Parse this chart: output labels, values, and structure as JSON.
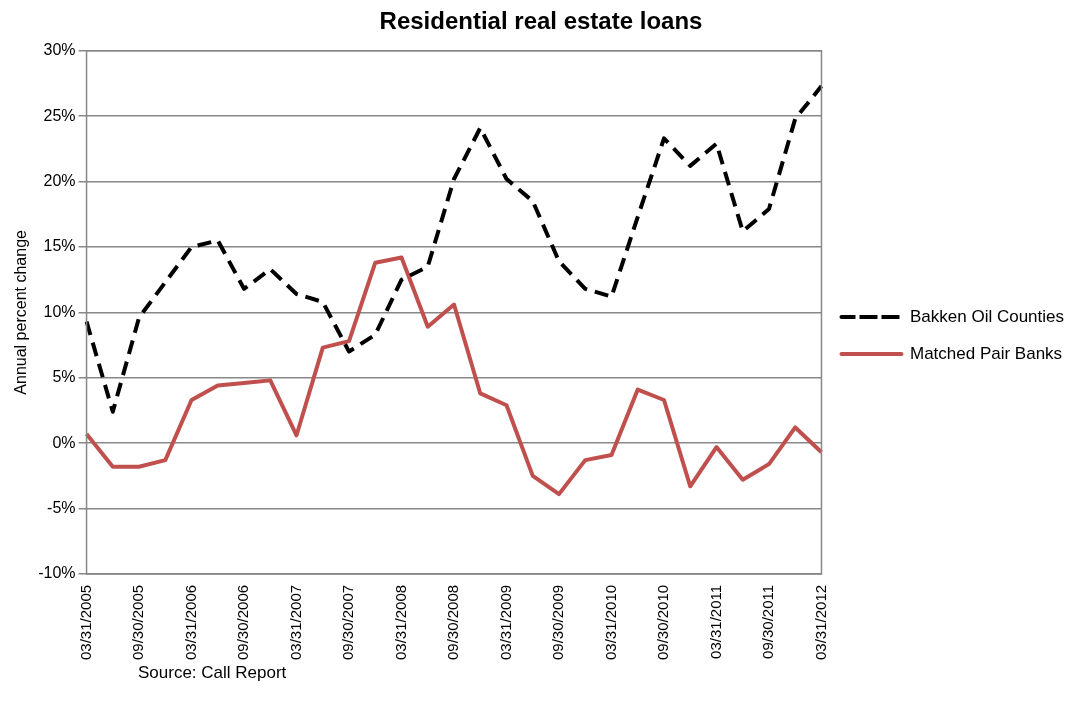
{
  "chart_data": {
    "type": "line",
    "title": "Residential real estate loans",
    "ylabel": "Annual percent change",
    "categories": [
      "03/31/2005",
      null,
      "09/30/2005",
      null,
      "03/31/2006",
      null,
      "09/30/2006",
      null,
      "03/31/2007",
      null,
      "09/30/2007",
      null,
      "03/31/2008",
      null,
      "09/30/2008",
      null,
      "03/31/2009",
      null,
      "09/30/2009",
      null,
      "03/31/2010",
      null,
      "09/30/2010",
      null,
      "03/31/2011",
      null,
      "09/30/2011",
      null,
      "03/31/2012"
    ],
    "series": [
      {
        "name": "Bakken Oil Counties",
        "color": "#000000",
        "line_style": "dashed",
        "values": [
          9.3,
          2.4,
          9.6,
          12.3,
          15.0,
          15.5,
          11.8,
          13.3,
          11.4,
          10.8,
          7.0,
          8.3,
          12.5,
          13.5,
          20.2,
          24.1,
          20.2,
          18.5,
          13.9,
          11.8,
          11.2,
          17.3,
          23.3,
          21.2,
          22.9,
          16.2,
          17.9,
          24.8,
          27.3
        ]
      },
      {
        "name": "Matched Pair Banks",
        "color": "#c0504d",
        "line_style": "solid",
        "values": [
          0.7,
          -1.8,
          -1.8,
          -1.3,
          3.3,
          4.4,
          4.6,
          4.8,
          0.6,
          7.3,
          7.8,
          13.8,
          14.2,
          8.9,
          10.6,
          3.8,
          2.9,
          -2.5,
          -3.9,
          -1.3,
          -0.9,
          4.1,
          3.3,
          -3.3,
          -0.3,
          -2.8,
          -1.6,
          1.2,
          -0.7
        ]
      }
    ],
    "ylim": [
      -10,
      30
    ],
    "yticks": [
      {
        "value": -10,
        "label": "-10%"
      },
      {
        "value": -5,
        "label": "-5%"
      },
      {
        "value": 0,
        "label": "0%"
      },
      {
        "value": 5,
        "label": "5%"
      },
      {
        "value": 10,
        "label": "10%"
      },
      {
        "value": 15,
        "label": "15%"
      },
      {
        "value": 20,
        "label": "20%"
      },
      {
        "value": 25,
        "label": "25%"
      },
      {
        "value": 30,
        "label": "30%"
      }
    ],
    "grid": "y",
    "legend": "right",
    "marker": "none",
    "annotations": [
      "Source: Call Report"
    ]
  }
}
